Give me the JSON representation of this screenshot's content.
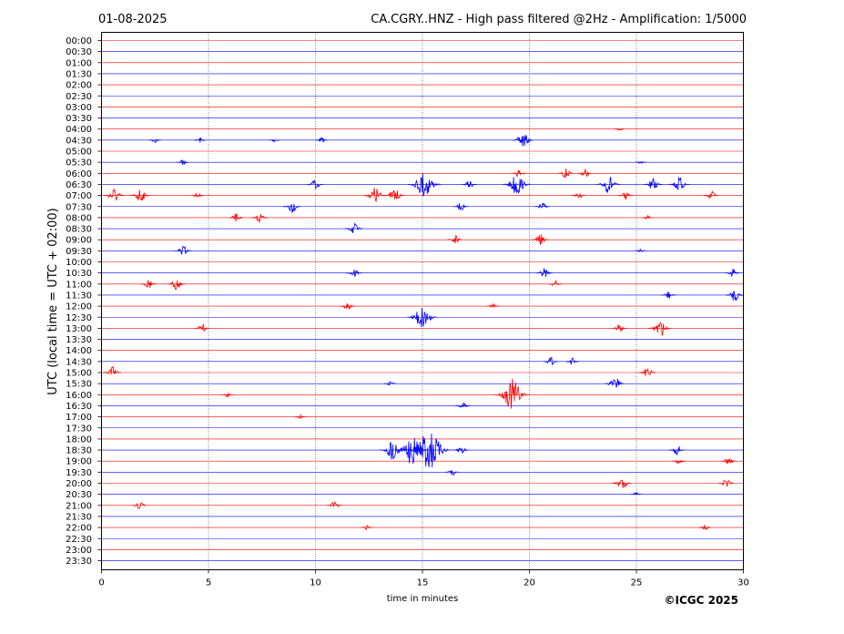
{
  "header": {
    "date": "01-08-2025",
    "title": "CA.CGRY..HNZ - High pass filtered @2Hz - Amplification: 1/5000"
  },
  "footer": {
    "copyright": "©ICGC 2025"
  },
  "chart_data": {
    "type": "line",
    "title": "CA.CGRY..HNZ - High pass filtered @2Hz - Amplification: 1/5000",
    "xlabel": "time in minutes",
    "ylabel": "UTC (local time = UTC + 02:00)",
    "xlim": [
      0,
      30
    ],
    "x_ticks": [
      "0",
      "5",
      "10",
      "15",
      "20",
      "25",
      "30"
    ],
    "vertical_gridlines_minutes": [
      5,
      10,
      15,
      20,
      25
    ],
    "trace_colors": [
      "#ff0000",
      "#0000ff"
    ],
    "row_labels": [
      "00:00",
      "00:30",
      "01:00",
      "01:30",
      "02:00",
      "02:30",
      "03:00",
      "03:30",
      "04:00",
      "04:30",
      "05:00",
      "05:30",
      "06:00",
      "06:30",
      "07:00",
      "07:30",
      "08:00",
      "08:30",
      "09:00",
      "09:30",
      "10:00",
      "10:30",
      "11:00",
      "11:30",
      "12:00",
      "12:30",
      "13:00",
      "13:30",
      "14:00",
      "14:30",
      "15:00",
      "15:30",
      "16:00",
      "16:30",
      "17:00",
      "17:30",
      "18:00",
      "18:30",
      "19:00",
      "19:30",
      "20:00",
      "20:30",
      "21:00",
      "21:30",
      "22:00",
      "22:30",
      "23:00",
      "23:30"
    ],
    "events": [
      {
        "row": "04:00",
        "minute": 24.2,
        "amp": 0.15
      },
      {
        "row": "04:30",
        "minute": 2.5,
        "amp": 0.2
      },
      {
        "row": "04:30",
        "minute": 4.6,
        "amp": 0.2
      },
      {
        "row": "04:30",
        "minute": 8.1,
        "amp": 0.15
      },
      {
        "row": "04:30",
        "minute": 10.3,
        "amp": 0.2
      },
      {
        "row": "04:30",
        "minute": 19.7,
        "amp": 0.55
      },
      {
        "row": "05:30",
        "minute": 3.8,
        "amp": 0.2
      },
      {
        "row": "05:30",
        "minute": 25.2,
        "amp": 0.15
      },
      {
        "row": "06:00",
        "minute": 19.5,
        "amp": 0.3
      },
      {
        "row": "06:00",
        "minute": 21.7,
        "amp": 0.35
      },
      {
        "row": "06:00",
        "minute": 22.6,
        "amp": 0.3
      },
      {
        "row": "06:30",
        "minute": 10.0,
        "amp": 0.35
      },
      {
        "row": "06:30",
        "minute": 15.1,
        "amp": 1.0
      },
      {
        "row": "06:30",
        "minute": 17.2,
        "amp": 0.3
      },
      {
        "row": "06:30",
        "minute": 19.4,
        "amp": 0.8
      },
      {
        "row": "06:30",
        "minute": 23.7,
        "amp": 0.65
      },
      {
        "row": "06:30",
        "minute": 25.8,
        "amp": 0.45
      },
      {
        "row": "06:30",
        "minute": 27.0,
        "amp": 0.55
      },
      {
        "row": "07:00",
        "minute": 0.6,
        "amp": 0.55
      },
      {
        "row": "07:00",
        "minute": 1.8,
        "amp": 0.5
      },
      {
        "row": "07:00",
        "minute": 4.5,
        "amp": 0.2
      },
      {
        "row": "07:00",
        "minute": 12.8,
        "amp": 0.6
      },
      {
        "row": "07:00",
        "minute": 13.7,
        "amp": 0.5
      },
      {
        "row": "07:00",
        "minute": 22.3,
        "amp": 0.25
      },
      {
        "row": "07:00",
        "minute": 24.5,
        "amp": 0.3
      },
      {
        "row": "07:00",
        "minute": 28.5,
        "amp": 0.3
      },
      {
        "row": "07:30",
        "minute": 8.9,
        "amp": 0.45
      },
      {
        "row": "07:30",
        "minute": 16.8,
        "amp": 0.3
      },
      {
        "row": "07:30",
        "minute": 20.6,
        "amp": 0.3
      },
      {
        "row": "08:00",
        "minute": 6.3,
        "amp": 0.3
      },
      {
        "row": "08:00",
        "minute": 7.4,
        "amp": 0.35
      },
      {
        "row": "08:00",
        "minute": 25.5,
        "amp": 0.15
      },
      {
        "row": "08:30",
        "minute": 11.8,
        "amp": 0.4
      },
      {
        "row": "09:00",
        "minute": 16.5,
        "amp": 0.35
      },
      {
        "row": "09:00",
        "minute": 20.5,
        "amp": 0.4
      },
      {
        "row": "09:30",
        "minute": 3.8,
        "amp": 0.4
      },
      {
        "row": "09:30",
        "minute": 25.2,
        "amp": 0.15
      },
      {
        "row": "10:30",
        "minute": 11.8,
        "amp": 0.35
      },
      {
        "row": "10:30",
        "minute": 20.7,
        "amp": 0.35
      },
      {
        "row": "10:30",
        "minute": 29.5,
        "amp": 0.3
      },
      {
        "row": "11:00",
        "minute": 2.2,
        "amp": 0.35
      },
      {
        "row": "11:00",
        "minute": 3.5,
        "amp": 0.4
      },
      {
        "row": "11:00",
        "minute": 21.2,
        "amp": 0.25
      },
      {
        "row": "11:30",
        "minute": 26.5,
        "amp": 0.3
      },
      {
        "row": "11:30",
        "minute": 29.6,
        "amp": 0.45
      },
      {
        "row": "12:00",
        "minute": 11.5,
        "amp": 0.3
      },
      {
        "row": "12:00",
        "minute": 18.3,
        "amp": 0.2
      },
      {
        "row": "12:30",
        "minute": 15.0,
        "amp": 0.9
      },
      {
        "row": "13:00",
        "minute": 4.7,
        "amp": 0.3
      },
      {
        "row": "13:00",
        "minute": 24.2,
        "amp": 0.3
      },
      {
        "row": "13:00",
        "minute": 26.1,
        "amp": 0.6
      },
      {
        "row": "14:30",
        "minute": 21.0,
        "amp": 0.3
      },
      {
        "row": "14:30",
        "minute": 22.0,
        "amp": 0.25
      },
      {
        "row": "15:00",
        "minute": 0.5,
        "amp": 0.45
      },
      {
        "row": "15:00",
        "minute": 25.5,
        "amp": 0.4
      },
      {
        "row": "15:30",
        "minute": 13.5,
        "amp": 0.2
      },
      {
        "row": "15:30",
        "minute": 24.0,
        "amp": 0.5
      },
      {
        "row": "16:00",
        "minute": 19.2,
        "amp": 1.1
      },
      {
        "row": "16:00",
        "minute": 5.9,
        "amp": 0.2
      },
      {
        "row": "16:30",
        "minute": 16.9,
        "amp": 0.3
      },
      {
        "row": "17:00",
        "minute": 9.3,
        "amp": 0.15
      },
      {
        "row": "18:30",
        "minute": 13.6,
        "amp": 0.7
      },
      {
        "row": "18:30",
        "minute": 14.5,
        "amp": 1.0
      },
      {
        "row": "18:30",
        "minute": 15.3,
        "amp": 1.5
      },
      {
        "row": "18:30",
        "minute": 16.8,
        "amp": 0.35
      },
      {
        "row": "18:30",
        "minute": 26.9,
        "amp": 0.35
      },
      {
        "row": "19:00",
        "minute": 27.0,
        "amp": 0.25
      },
      {
        "row": "19:00",
        "minute": 29.3,
        "amp": 0.3
      },
      {
        "row": "19:30",
        "minute": 16.4,
        "amp": 0.25
      },
      {
        "row": "20:00",
        "minute": 24.3,
        "amp": 0.5
      },
      {
        "row": "20:00",
        "minute": 29.2,
        "amp": 0.35
      },
      {
        "row": "20:30",
        "minute": 25.0,
        "amp": 0.15
      },
      {
        "row": "21:00",
        "minute": 1.8,
        "amp": 0.3
      },
      {
        "row": "21:00",
        "minute": 10.9,
        "amp": 0.3
      },
      {
        "row": "22:00",
        "minute": 12.4,
        "amp": 0.15
      },
      {
        "row": "22:00",
        "minute": 28.2,
        "amp": 0.2
      }
    ]
  }
}
